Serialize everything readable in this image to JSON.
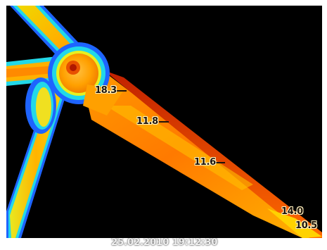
{
  "image": {
    "description_icon": "thermal-wind-turbine-image",
    "palette": {
      "background": "#000000",
      "frame": "#ffffff",
      "cold": "#1e64ff",
      "cool": "#22d8e8",
      "mild": "#e8f020",
      "warm": "#ffa000",
      "hot": "#e84800",
      "hottest": "#b01800"
    }
  },
  "markers": [
    {
      "label": "18.3"
    },
    {
      "label": "11.8"
    },
    {
      "label": "11.6"
    },
    {
      "label": "14.0"
    },
    {
      "label": "10.5"
    }
  ],
  "timestamp": "25.02.2010 19:12:30"
}
